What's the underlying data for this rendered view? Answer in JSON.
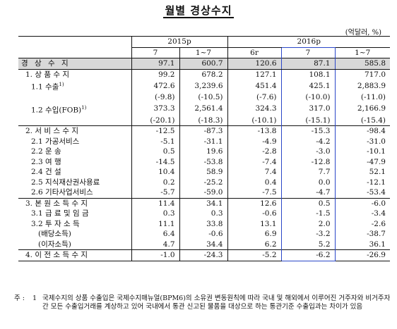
{
  "title": "월별 경상수지",
  "unit": "(억달러, %)",
  "header": {
    "group1": "2015p",
    "group2": "2016p",
    "cols": [
      "7",
      "1~7",
      "6r",
      "7",
      "1~7"
    ]
  },
  "rows": [
    {
      "label": "경 상 수 지",
      "values": [
        "97.1",
        "600.7",
        "120.6",
        "87.1",
        "585.8"
      ],
      "level": 0
    },
    {
      "label": "1. 상 품 수 지",
      "values": [
        "99.2",
        "678.2",
        "127.1",
        "108.1",
        "717.0"
      ],
      "level": 1
    },
    {
      "label": "1.1 수출",
      "sup": "1)",
      "values": [
        "472.6",
        "3,239.6",
        "451.4",
        "425.1",
        "2,883.9"
      ],
      "level": 2
    },
    {
      "label": "",
      "values": [
        "(-9.8)",
        "(-10.5)",
        "(-7.6)",
        "(-10.0)",
        "(-11.0)"
      ],
      "level": 2
    },
    {
      "label": "1.2 수입(FOB)",
      "sup": "1)",
      "values": [
        "373.3",
        "2,561.4",
        "324.3",
        "317.0",
        "2,166.9"
      ],
      "level": 2
    },
    {
      "label": "",
      "values": [
        "(-20.1)",
        "(-18.3)",
        "(-10.1)",
        "(-15.1)",
        "(-15.4)"
      ],
      "level": 2
    },
    {
      "label": "2. 서 비 스 수 지",
      "values": [
        "-12.5",
        "-87.3",
        "-13.8",
        "-15.3",
        "-98.4"
      ],
      "level": 1,
      "sec": true
    },
    {
      "label": "2.1 가공서비스",
      "values": [
        "-5.1",
        "-31.1",
        "-4.9",
        "-4.2",
        "-31.0"
      ],
      "level": 2
    },
    {
      "label": "2.2 운          송",
      "values": [
        "0.5",
        "19.6",
        "-2.8",
        "-3.0",
        "-10.1"
      ],
      "level": 2
    },
    {
      "label": "2.3 여          행",
      "values": [
        "-14.5",
        "-53.8",
        "-7.4",
        "-12.8",
        "-47.9"
      ],
      "level": 2
    },
    {
      "label": "2.4 건          설",
      "values": [
        "10.4",
        "58.9",
        "7.4",
        "7.7",
        "52.1"
      ],
      "level": 2
    },
    {
      "label": "2.5 지식재산권사용료",
      "values": [
        "0.2",
        "-25.2",
        "0.4",
        "0.0",
        "-12.1"
      ],
      "level": 2
    },
    {
      "label": "2.6 기타사업서비스",
      "values": [
        "-5.7",
        "-59.0",
        "-7.5",
        "-4.7",
        "-53.4"
      ],
      "level": 2
    },
    {
      "label": "3. 본 원 소 득 수 지",
      "values": [
        "11.4",
        "34.1",
        "12.6",
        "0.5",
        "-6.0"
      ],
      "level": 1,
      "sec": true
    },
    {
      "label": "3.1 급 료 및 임 금",
      "values": [
        "0.3",
        "0.3",
        "-0.6",
        "-1.5",
        "-3.4"
      ],
      "level": 2
    },
    {
      "label": "3.2 투   자   소   득",
      "values": [
        "11.1",
        "33.8",
        "13.1",
        "2.0",
        "-2.6"
      ],
      "level": 2
    },
    {
      "label": "(배당소득)",
      "values": [
        "6.4",
        "-0.6",
        "6.9",
        "-3.2",
        "-38.7"
      ],
      "level": 3
    },
    {
      "label": "(이자소득)",
      "values": [
        "4.7",
        "34.4",
        "6.2",
        "5.2",
        "36.1"
      ],
      "level": 3
    },
    {
      "label": "4. 이 전 소 득 수 지",
      "values": [
        "-1.0",
        "-24.3",
        "-5.2",
        "-6.2",
        "-26.9"
      ],
      "level": 1,
      "sec": true,
      "last": true
    }
  ],
  "note": {
    "mark": "주 :",
    "num": "1",
    "text": "국제수지의 상품 수출입은 국제수지매뉴얼(BPM6)의 소유권 변동원칙에 따라 국내 및 해외에서 이루어진 거주자와 비거주자 간 모든 수출입거래를 계상하고 있어 국내에서 통관 신고된 물품을 대상으로 하는 통관기준 수출입과는 차이가 있음"
  }
}
